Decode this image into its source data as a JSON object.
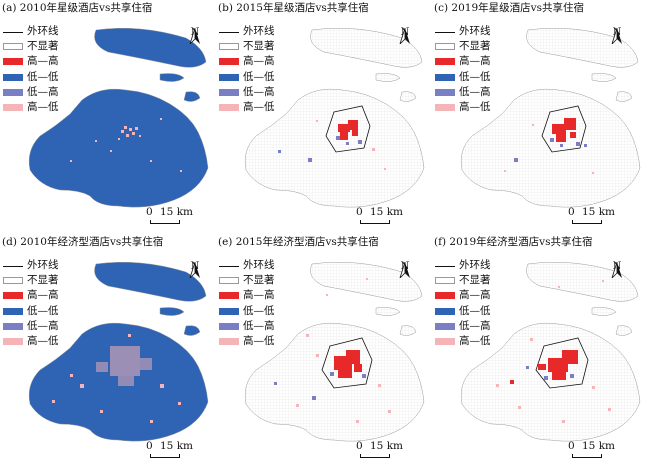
{
  "legend": {
    "outer_ring": "外环线",
    "not_significant": "不显著",
    "high_high": "高—高",
    "low_low": "低—低",
    "low_high": "低—高",
    "high_low": "高—低"
  },
  "colors": {
    "high_high": "#e8292a",
    "low_low": "#2f63b3",
    "low_high": "#7a7fc4",
    "high_low": "#f4b4b8",
    "not_significant": "#ffffff",
    "outline": "#9a9a9a"
  },
  "north_label": "N",
  "scale": {
    "zero": "0",
    "distance": "15 km"
  },
  "panels": [
    {
      "title": "(a) 2010年星级酒店vs共享住宿",
      "map": "lowlow_stars"
    },
    {
      "title": "(b) 2015年星级酒店vs共享住宿",
      "map": "core_small"
    },
    {
      "title": "(c) 2019年星级酒店vs共享住宿",
      "map": "core_small"
    },
    {
      "title": "(d) 2010年经济型酒店vs共享住宿",
      "map": "lowlow_econ"
    },
    {
      "title": "(e) 2015年经济型酒店vs共享住宿",
      "map": "core_large"
    },
    {
      "title": "(f) 2019年经济型酒店vs共享住宿",
      "map": "core_large"
    }
  ]
}
